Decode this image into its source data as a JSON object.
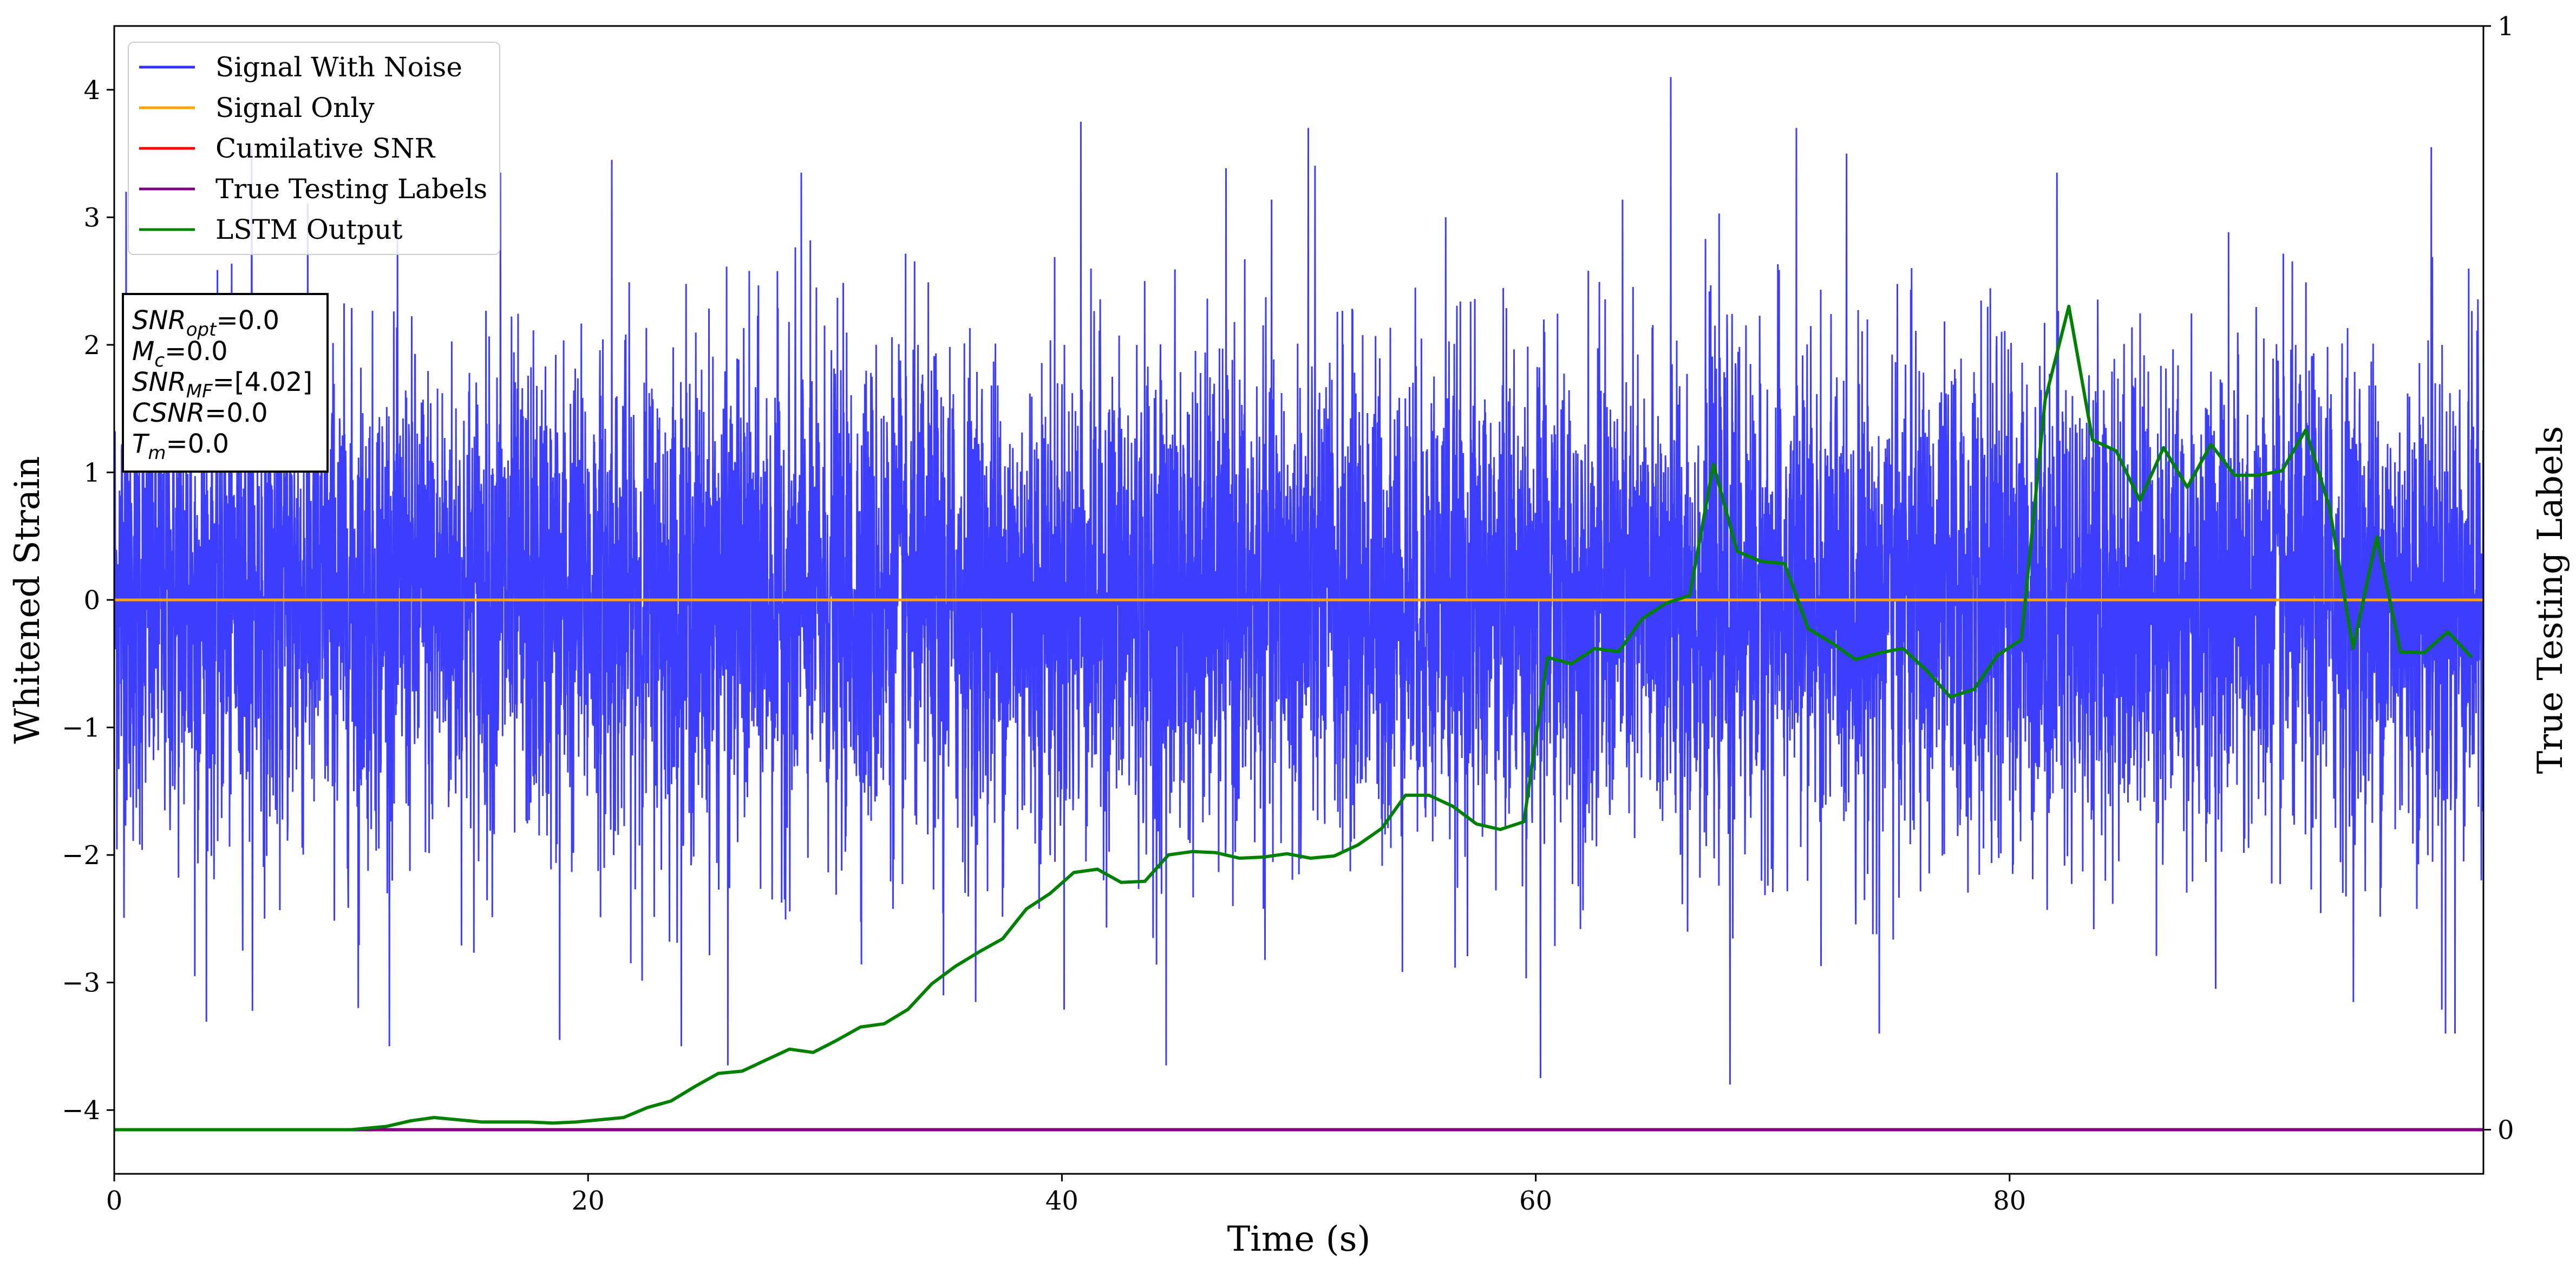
{
  "chart_data": {
    "type": "line",
    "xlabel": "Time (s)",
    "ylabel": "Whitened Strain",
    "y2label": "True Testing Labels",
    "xlim": [
      0,
      100
    ],
    "ylim": [
      -4.5,
      4.5
    ],
    "y2lim": [
      -0.04,
      1.0
    ],
    "x_ticks": [
      0,
      20,
      40,
      60,
      80
    ],
    "y_ticks": [
      -4,
      -3,
      -2,
      -1,
      0,
      1,
      2,
      3,
      4
    ],
    "y2_ticks": [
      0,
      1
    ],
    "grid": false,
    "legend_position": "top-left",
    "info_box": [
      {
        "base": "SNR",
        "sub": "opt",
        "value": "=0.0"
      },
      {
        "base": "M",
        "sub": "c",
        "value": "=0.0"
      },
      {
        "base": "SNR",
        "sub": "MF",
        "value": "=[4.02]"
      },
      {
        "base": "CSNR",
        "sub": "",
        "value": "=0.0"
      },
      {
        "base": "T",
        "sub": "m",
        "value": "=0.0"
      }
    ],
    "series": [
      {
        "name": "Signal With Noise",
        "color": "#3333ff",
        "axis": "left",
        "kind": "noise",
        "x_range": [
          0,
          100
        ],
        "envelope": [
          -3.8,
          4.1
        ],
        "extremes": [
          {
            "x": 0.5,
            "y": 3.2
          },
          {
            "x": 3.4,
            "y": -2.95
          },
          {
            "x": 5.8,
            "y": 3.55
          },
          {
            "x": 10.3,
            "y": -3.2
          },
          {
            "x": 16.3,
            "y": 3.35
          },
          {
            "x": 18.8,
            "y": -3.45
          },
          {
            "x": 21.0,
            "y": 3.45
          },
          {
            "x": 25.9,
            "y": -3.65
          },
          {
            "x": 29.0,
            "y": 3.35
          },
          {
            "x": 35.0,
            "y": -3.1
          },
          {
            "x": 40.8,
            "y": 3.75
          },
          {
            "x": 44.4,
            "y": -3.65
          },
          {
            "x": 50.4,
            "y": 3.7
          },
          {
            "x": 56.2,
            "y": 3.0
          },
          {
            "x": 60.2,
            "y": -3.75
          },
          {
            "x": 65.7,
            "y": 4.1
          },
          {
            "x": 68.2,
            "y": -3.8
          },
          {
            "x": 71.0,
            "y": 3.7
          },
          {
            "x": 74.5,
            "y": -3.4
          },
          {
            "x": 82.0,
            "y": 3.35
          },
          {
            "x": 88.7,
            "y": -3.05
          },
          {
            "x": 97.8,
            "y": 3.55
          },
          {
            "x": 98.4,
            "y": -3.4
          },
          {
            "x": 98.8,
            "y": -3.4
          }
        ]
      },
      {
        "name": "Signal Only",
        "color": "#ffa500",
        "axis": "left",
        "x": [
          0,
          100
        ],
        "y": [
          0,
          0
        ]
      },
      {
        "name": "Cumilative SNR",
        "color": "#ff0000",
        "axis": "right",
        "x": [
          0,
          100
        ],
        "y": [
          0,
          0
        ]
      },
      {
        "name": "True Testing Labels",
        "color": "#800080",
        "axis": "right",
        "x": [
          0,
          100
        ],
        "y": [
          0,
          0
        ]
      },
      {
        "name": "LSTM Output",
        "color": "#008000",
        "axis": "right",
        "x": [
          0,
          5,
          8,
          10,
          11.5,
          12.5,
          13.5,
          14.5,
          15.5,
          16.5,
          17.5,
          18.5,
          19.5,
          20.5,
          21.5,
          22.5,
          23.5,
          24.5,
          25.5,
          26.5,
          27.5,
          28.5,
          29.5,
          30.5,
          31.5,
          32.5,
          33.5,
          34.5,
          35.5,
          36.5,
          37.5,
          38.5,
          39.5,
          40.5,
          41.5,
          42.5,
          43.5,
          44.5,
          45.5,
          46.5,
          47.5,
          48.5,
          49.5,
          50.5,
          51.5,
          52.5,
          53.5,
          54.5,
          55.5,
          56.5,
          57.5,
          58.5,
          59.5,
          60.5,
          61.5,
          62.5,
          63.5,
          64.5,
          65.5,
          66.5,
          67.5,
          68.5,
          69.5,
          70.5,
          71.5,
          72.5,
          73.5,
          74.5,
          75.5,
          76.5,
          77.5,
          78.5,
          79.5,
          80.5,
          81.5,
          82.5,
          83.5,
          84.5,
          85.5,
          86.5,
          87.5,
          88.5,
          89.5,
          90.5,
          91.5,
          92.5,
          93.5,
          94.5,
          95.5,
          96.5,
          97.5,
          98.5,
          99.5
        ],
        "y": [
          0.0,
          0.0,
          0.0,
          0.0,
          0.003,
          0.008,
          0.011,
          0.009,
          0.007,
          0.007,
          0.007,
          0.006,
          0.007,
          0.009,
          0.011,
          0.02,
          0.026,
          0.039,
          0.051,
          0.053,
          0.063,
          0.073,
          0.07,
          0.081,
          0.093,
          0.096,
          0.109,
          0.132,
          0.148,
          0.161,
          0.173,
          0.2,
          0.214,
          0.233,
          0.236,
          0.224,
          0.225,
          0.249,
          0.252,
          0.251,
          0.246,
          0.247,
          0.25,
          0.246,
          0.248,
          0.258,
          0.273,
          0.303,
          0.303,
          0.293,
          0.277,
          0.272,
          0.279,
          0.428,
          0.422,
          0.436,
          0.433,
          0.463,
          0.477,
          0.484,
          0.603,
          0.524,
          0.515,
          0.513,
          0.454,
          0.441,
          0.426,
          0.432,
          0.436,
          0.416,
          0.392,
          0.399,
          0.43,
          0.444,
          0.661,
          0.746,
          0.625,
          0.615,
          0.57,
          0.618,
          0.582,
          0.621,
          0.593,
          0.593,
          0.597,
          0.634,
          0.564,
          0.436,
          0.537,
          0.433,
          0.432,
          0.451,
          0.428
        ]
      }
    ]
  }
}
